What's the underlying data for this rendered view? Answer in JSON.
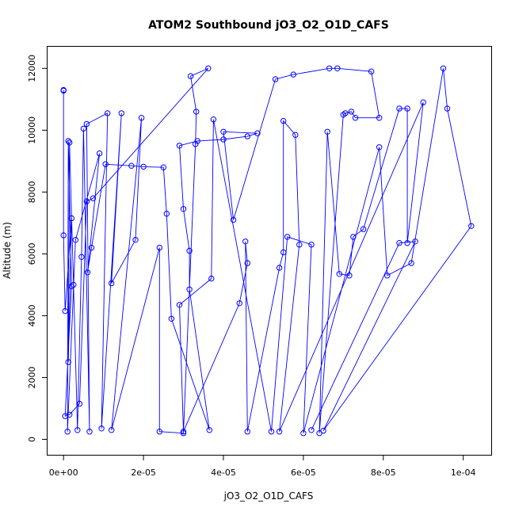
{
  "chart_data": {
    "type": "line",
    "title": "ATOM2 Southbound jO3_O2_O1D_CAFS",
    "xlabel": "jO3_O2_O1D_CAFS",
    "ylabel": "Altitude (m)",
    "xlim": [
      -4e-06,
      0.000107
    ],
    "ylim": [
      -500,
      12700
    ],
    "x_ticks": [
      0,
      2e-05,
      4e-05,
      6e-05,
      8e-05,
      0.0001
    ],
    "x_tick_labels": [
      "0e+00",
      "2e-05",
      "4e-05",
      "6e-05",
      "8e-05",
      "1e-04"
    ],
    "y_ticks": [
      0,
      2000,
      4000,
      6000,
      8000,
      10000,
      12000
    ],
    "y_tick_labels": [
      "0",
      "2000",
      "4000",
      "6000",
      "8000",
      "10000",
      "12000"
    ],
    "grid": false,
    "line_color": "#0000ff",
    "marker": "open-circle",
    "series": [
      {
        "points": [
          [
            0.0,
            11280
          ],
          [
            0.0,
            11300
          ],
          [
            0.0,
            6600
          ],
          [
            4e-07,
            4150
          ],
          [
            2e-06,
            7150
          ],
          [
            1.2e-06,
            2500
          ],
          [
            1.5e-06,
            9600
          ],
          [
            2.5e-06,
            5000
          ],
          [
            3.5e-06,
            300
          ],
          [
            4.5e-06,
            5900
          ],
          [
            5e-06,
            10050
          ],
          [
            6.5e-06,
            250
          ],
          [
            5.8e-06,
            10200
          ],
          [
            1.1e-05,
            10550
          ],
          [
            9.5e-06,
            350
          ],
          [
            1.45e-05,
            10550
          ],
          [
            1.2e-05,
            5050
          ],
          [
            1.8e-05,
            6450
          ],
          [
            1.95e-05,
            10400
          ],
          [
            1.2e-05,
            300
          ],
          [
            2.4e-05,
            6200
          ],
          [
            2.4e-05,
            250
          ],
          [
            3e-05,
            200
          ],
          [
            3.3e-05,
            9550
          ],
          [
            3.32e-05,
            10600
          ],
          [
            3.18e-05,
            11750
          ],
          [
            3.62e-05,
            12000
          ],
          [
            7.4e-06,
            7800
          ],
          [
            5.8e-06,
            7700
          ],
          [
            4e-06,
            1150
          ],
          [
            1.5e-06,
            800
          ],
          [
            4e-07,
            750
          ],
          [
            2e-06,
            4950
          ],
          [
            1.2e-06,
            9650
          ],
          [
            1e-06,
            250
          ],
          [
            3e-06,
            6450
          ],
          [
            9e-06,
            9250
          ],
          [
            6e-06,
            5400
          ],
          [
            7e-06,
            6200
          ],
          [
            1.05e-05,
            8900
          ],
          [
            1.7e-05,
            8850
          ],
          [
            2e-05,
            8820
          ],
          [
            2.5e-05,
            8800
          ],
          [
            2.58e-05,
            7300
          ],
          [
            2.7e-05,
            3900
          ],
          [
            3.65e-05,
            300
          ],
          [
            3.15e-05,
            4850
          ],
          [
            3.15e-05,
            6100
          ],
          [
            3e-05,
            7450
          ],
          [
            2.9e-05,
            9500
          ],
          [
            3.35e-05,
            9650
          ],
          [
            4e-05,
            9700
          ],
          [
            4.6e-05,
            9800
          ],
          [
            4.85e-05,
            9900
          ],
          [
            4e-05,
            9950
          ],
          [
            4.25e-05,
            7100
          ],
          [
            5.3e-05,
            11650
          ],
          [
            5.75e-05,
            11800
          ],
          [
            6.65e-05,
            12000
          ],
          [
            6.85e-05,
            12000
          ],
          [
            7.7e-05,
            11900
          ],
          [
            7.9e-05,
            10400
          ],
          [
            7.3e-05,
            10400
          ],
          [
            7.2e-05,
            10600
          ],
          [
            7.05e-05,
            10550
          ],
          [
            7e-05,
            10500
          ],
          [
            6.4e-05,
            200
          ],
          [
            6.6e-05,
            9950
          ],
          [
            6.9e-05,
            5350
          ],
          [
            7.15e-05,
            5300
          ],
          [
            7.25e-05,
            6550
          ],
          [
            7.5e-05,
            6800
          ],
          [
            8.4e-05,
            10700
          ],
          [
            8.6e-05,
            10700
          ],
          [
            8.6e-05,
            6350
          ],
          [
            9e-05,
            10900
          ],
          [
            5.4e-05,
            250
          ],
          [
            5.9e-05,
            6300
          ],
          [
            5.8e-05,
            9850
          ],
          [
            5.5e-05,
            10300
          ],
          [
            5.5e-05,
            6050
          ],
          [
            5.4e-05,
            5550
          ],
          [
            4.6e-05,
            250
          ],
          [
            4.55e-05,
            6400
          ],
          [
            4.6e-05,
            5700
          ],
          [
            4.4e-05,
            4400
          ],
          [
            3e-05,
            250
          ],
          [
            2.9e-05,
            4350
          ],
          [
            3.7e-05,
            5200
          ],
          [
            3.75e-05,
            10350
          ],
          [
            5.2e-05,
            250
          ],
          [
            5.6e-05,
            6550
          ],
          [
            6.2e-05,
            6300
          ],
          [
            6e-05,
            200
          ],
          [
            7.9e-05,
            9450
          ],
          [
            8.1e-05,
            5300
          ],
          [
            8.7e-05,
            5700
          ],
          [
            9.5e-05,
            12000
          ],
          [
            9.6e-05,
            10700
          ],
          [
            0.000102,
            6900
          ],
          [
            6.5e-05,
            280
          ],
          [
            8.8e-05,
            6400
          ],
          [
            8.4e-05,
            6350
          ],
          [
            6.2e-05,
            300
          ]
        ]
      }
    ]
  }
}
